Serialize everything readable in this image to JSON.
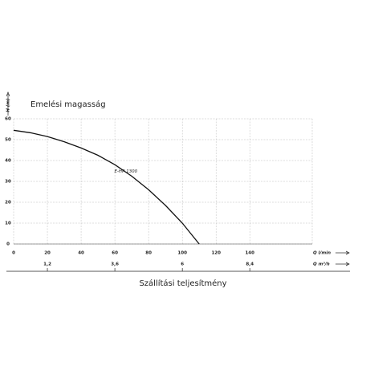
{
  "chart_data": {
    "type": "line",
    "title": "Emelési magasság",
    "y_label": "H (m)",
    "x_label": "Q l/min",
    "x2_label": "Q m³/h",
    "bottom_label": "Szállítási teljesítmény",
    "series": [
      {
        "name": "E-HP 1300",
        "color": "#111111",
        "x": [
          0,
          10,
          20,
          30,
          40,
          50,
          60,
          70,
          80,
          90,
          100,
          110
        ],
        "values": [
          54.5,
          53.3,
          51.5,
          49,
          46,
          42.5,
          38,
          32.5,
          26,
          18.5,
          10,
          0
        ]
      }
    ],
    "xlim": [
      0,
      177
    ],
    "xticks": [
      0,
      20,
      40,
      60,
      80,
      100,
      120,
      140
    ],
    "x2lim": [
      0,
      10.62
    ],
    "x2ticks": [
      {
        "value": 1.2,
        "label": "1,2"
      },
      {
        "value": 3.6,
        "label": "3,6"
      },
      {
        "value": 6,
        "label": "6"
      },
      {
        "value": 8.4,
        "label": "8,4"
      }
    ],
    "ylim": [
      0,
      60
    ],
    "yticks": [
      0,
      10,
      20,
      30,
      40,
      50,
      60
    ],
    "grid": true
  }
}
